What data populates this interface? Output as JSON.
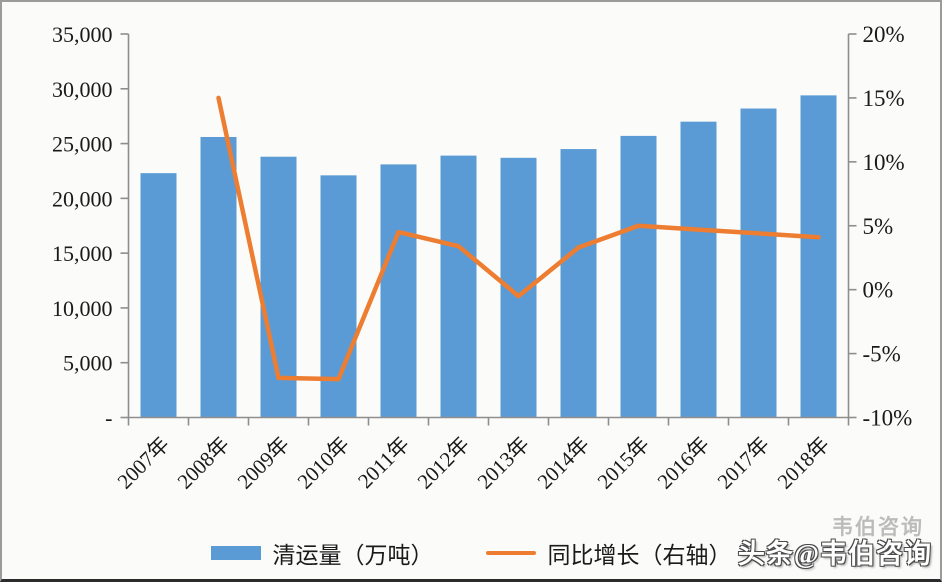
{
  "chart_data": {
    "type": "bar+line",
    "title": "",
    "categories": [
      "2007年",
      "2008年",
      "2009年",
      "2010年",
      "2011年",
      "2012年",
      "2013年",
      "2014年",
      "2015年",
      "2016年",
      "2017年",
      "2018年"
    ],
    "series": [
      {
        "name": "清运量（万吨）",
        "type": "bar",
        "axis": "left",
        "color": "#5B9BD5",
        "values": [
          22300,
          25600,
          23800,
          22100,
          23100,
          23900,
          23700,
          24500,
          25700,
          27000,
          28200,
          29400
        ]
      },
      {
        "name": "同比增长（右轴）",
        "type": "line",
        "axis": "right",
        "color": "#ED7D31",
        "values": [
          null,
          15.0,
          -6.9,
          -7.0,
          4.5,
          3.4,
          -0.5,
          3.3,
          5.0,
          4.7,
          4.4,
          4.1
        ]
      }
    ],
    "left_axis": {
      "min": 0,
      "max": 35000,
      "tick_step": 5000,
      "tick_labels_bottom_to_top": [
        "-",
        "5,000",
        "10,000",
        "15,000",
        "20,000",
        "25,000",
        "30,000",
        "35,000"
      ]
    },
    "right_axis": {
      "min": -10,
      "max": 20,
      "tick_step": 5,
      "unit": "%",
      "tick_labels_bottom_to_top": [
        "-10%",
        "-5%",
        "0%",
        "5%",
        "10%",
        "15%",
        "20%"
      ]
    },
    "grid": false,
    "legend_position": "bottom"
  },
  "legend": {
    "bar_label": "清运量（万吨）",
    "line_label": "同比增长（右轴）"
  },
  "watermark": {
    "text": "头条@韦伯咨询",
    "ghost": "韦伯咨询"
  },
  "colors": {
    "bar": "#5B9BD5",
    "line": "#ED7D31",
    "axis": "#8E8E8E",
    "text": "#1A1A1A",
    "background": "#FBFBF9"
  }
}
